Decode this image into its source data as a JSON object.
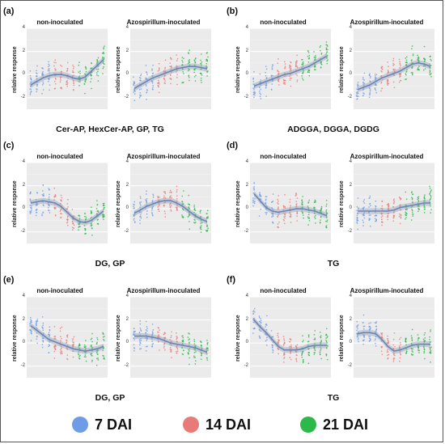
{
  "figure": {
    "panels": [
      {
        "label": "(a)",
        "caption": "Cer-AP, HexCer-AP, GP, TG",
        "subplots": [
          {
            "title": "non-inoculated",
            "ylabel": "relative response",
            "trend": [
              -0.9,
              -0.6,
              -0.3,
              -0.1,
              0.0,
              0.0,
              -0.1,
              -0.3,
              -0.4,
              -0.2,
              0.3,
              0.8,
              1.3
            ]
          },
          {
            "title": "Azospirillum-inoculated",
            "ylabel": "relative response",
            "trend": [
              -1.2,
              -0.9,
              -0.6,
              -0.3,
              -0.1,
              0.1,
              0.3,
              0.5,
              0.6,
              0.7,
              0.7,
              0.6,
              0.5
            ]
          }
        ]
      },
      {
        "label": "(b)",
        "caption": "ADGGA, DGGA, DGDG",
        "subplots": [
          {
            "title": "non-inoculated",
            "ylabel": "relative response",
            "trend": [
              -1.0,
              -0.8,
              -0.6,
              -0.4,
              -0.2,
              0.0,
              0.1,
              0.3,
              0.5,
              0.7,
              1.0,
              1.3,
              1.6
            ]
          },
          {
            "title": "Azospirillum-inoculated",
            "ylabel": "relative response",
            "trend": [
              -1.3,
              -1.1,
              -0.9,
              -0.6,
              -0.3,
              -0.1,
              0.1,
              0.3,
              0.6,
              0.9,
              1.0,
              0.9,
              0.7
            ]
          }
        ]
      },
      {
        "label": "(c)",
        "caption": "DG, GP",
        "subplots": [
          {
            "title": "non-inoculated",
            "ylabel": "relative response",
            "trend": [
              0.5,
              0.6,
              0.7,
              0.6,
              0.5,
              0.2,
              -0.3,
              -0.8,
              -1.1,
              -1.2,
              -1.0,
              -0.6,
              -0.2
            ]
          },
          {
            "title": "Azospirillum-inoculated",
            "ylabel": "relative response",
            "trend": [
              -0.4,
              -0.1,
              0.2,
              0.4,
              0.6,
              0.7,
              0.7,
              0.5,
              0.2,
              -0.2,
              -0.6,
              -0.9,
              -1.1
            ]
          }
        ]
      },
      {
        "label": "(d)",
        "caption": "TG",
        "subplots": [
          {
            "title": "non-inoculated",
            "ylabel": "relative response",
            "trend": [
              1.3,
              0.7,
              0.1,
              -0.2,
              -0.3,
              -0.2,
              -0.1,
              0.0,
              0.0,
              -0.1,
              -0.2,
              -0.4,
              -0.6
            ]
          },
          {
            "title": "Azospirillum-inoculated",
            "ylabel": "relative response",
            "trend": [
              -0.2,
              -0.2,
              -0.2,
              -0.2,
              -0.2,
              -0.2,
              -0.1,
              0.1,
              0.2,
              0.3,
              0.4,
              0.5,
              0.5
            ]
          }
        ]
      },
      {
        "label": "(e)",
        "caption": "DG, GP",
        "subplots": [
          {
            "title": "non-inoculated",
            "ylabel": "relative response",
            "trend": [
              1.5,
              1.1,
              0.7,
              0.3,
              0.1,
              -0.1,
              -0.3,
              -0.5,
              -0.6,
              -0.7,
              -0.6,
              -0.5,
              -0.3
            ]
          },
          {
            "title": "Azospirillum-inoculated",
            "ylabel": "relative response",
            "trend": [
              0.6,
              0.6,
              0.6,
              0.5,
              0.4,
              0.2,
              0.0,
              -0.1,
              -0.2,
              -0.3,
              -0.4,
              -0.6,
              -0.8
            ]
          }
        ]
      },
      {
        "label": "(f)",
        "caption": "TG",
        "subplots": [
          {
            "title": "non-inoculated",
            "ylabel": "relative response",
            "trend": [
              2.0,
              1.4,
              0.9,
              0.3,
              -0.3,
              -0.6,
              -0.6,
              -0.6,
              -0.5,
              -0.3,
              -0.2,
              -0.2,
              -0.2
            ]
          },
          {
            "title": "Azospirillum-inoculated",
            "ylabel": "relative response",
            "trend": [
              0.8,
              0.9,
              0.9,
              0.8,
              0.3,
              -0.3,
              -0.7,
              -0.6,
              -0.4,
              -0.2,
              -0.1,
              -0.1,
              -0.1
            ]
          }
        ]
      }
    ]
  },
  "legend": {
    "items": [
      {
        "label": "7 DAI",
        "color": "#6f9ce6"
      },
      {
        "label": "14 DAI",
        "color": "#e87b78"
      },
      {
        "label": "21 DAI",
        "color": "#2db84a"
      }
    ]
  },
  "chart_data": {
    "type": "scatter",
    "y_ticks": [
      "4",
      "2",
      "0",
      "-2"
    ],
    "ylim": [
      -3,
      4
    ],
    "series_colors": {
      "7 DAI": "#6f9ce6",
      "14 DAI": "#e87b78",
      "21 DAI": "#2db84a"
    },
    "trend_color": "#6a86b8"
  }
}
